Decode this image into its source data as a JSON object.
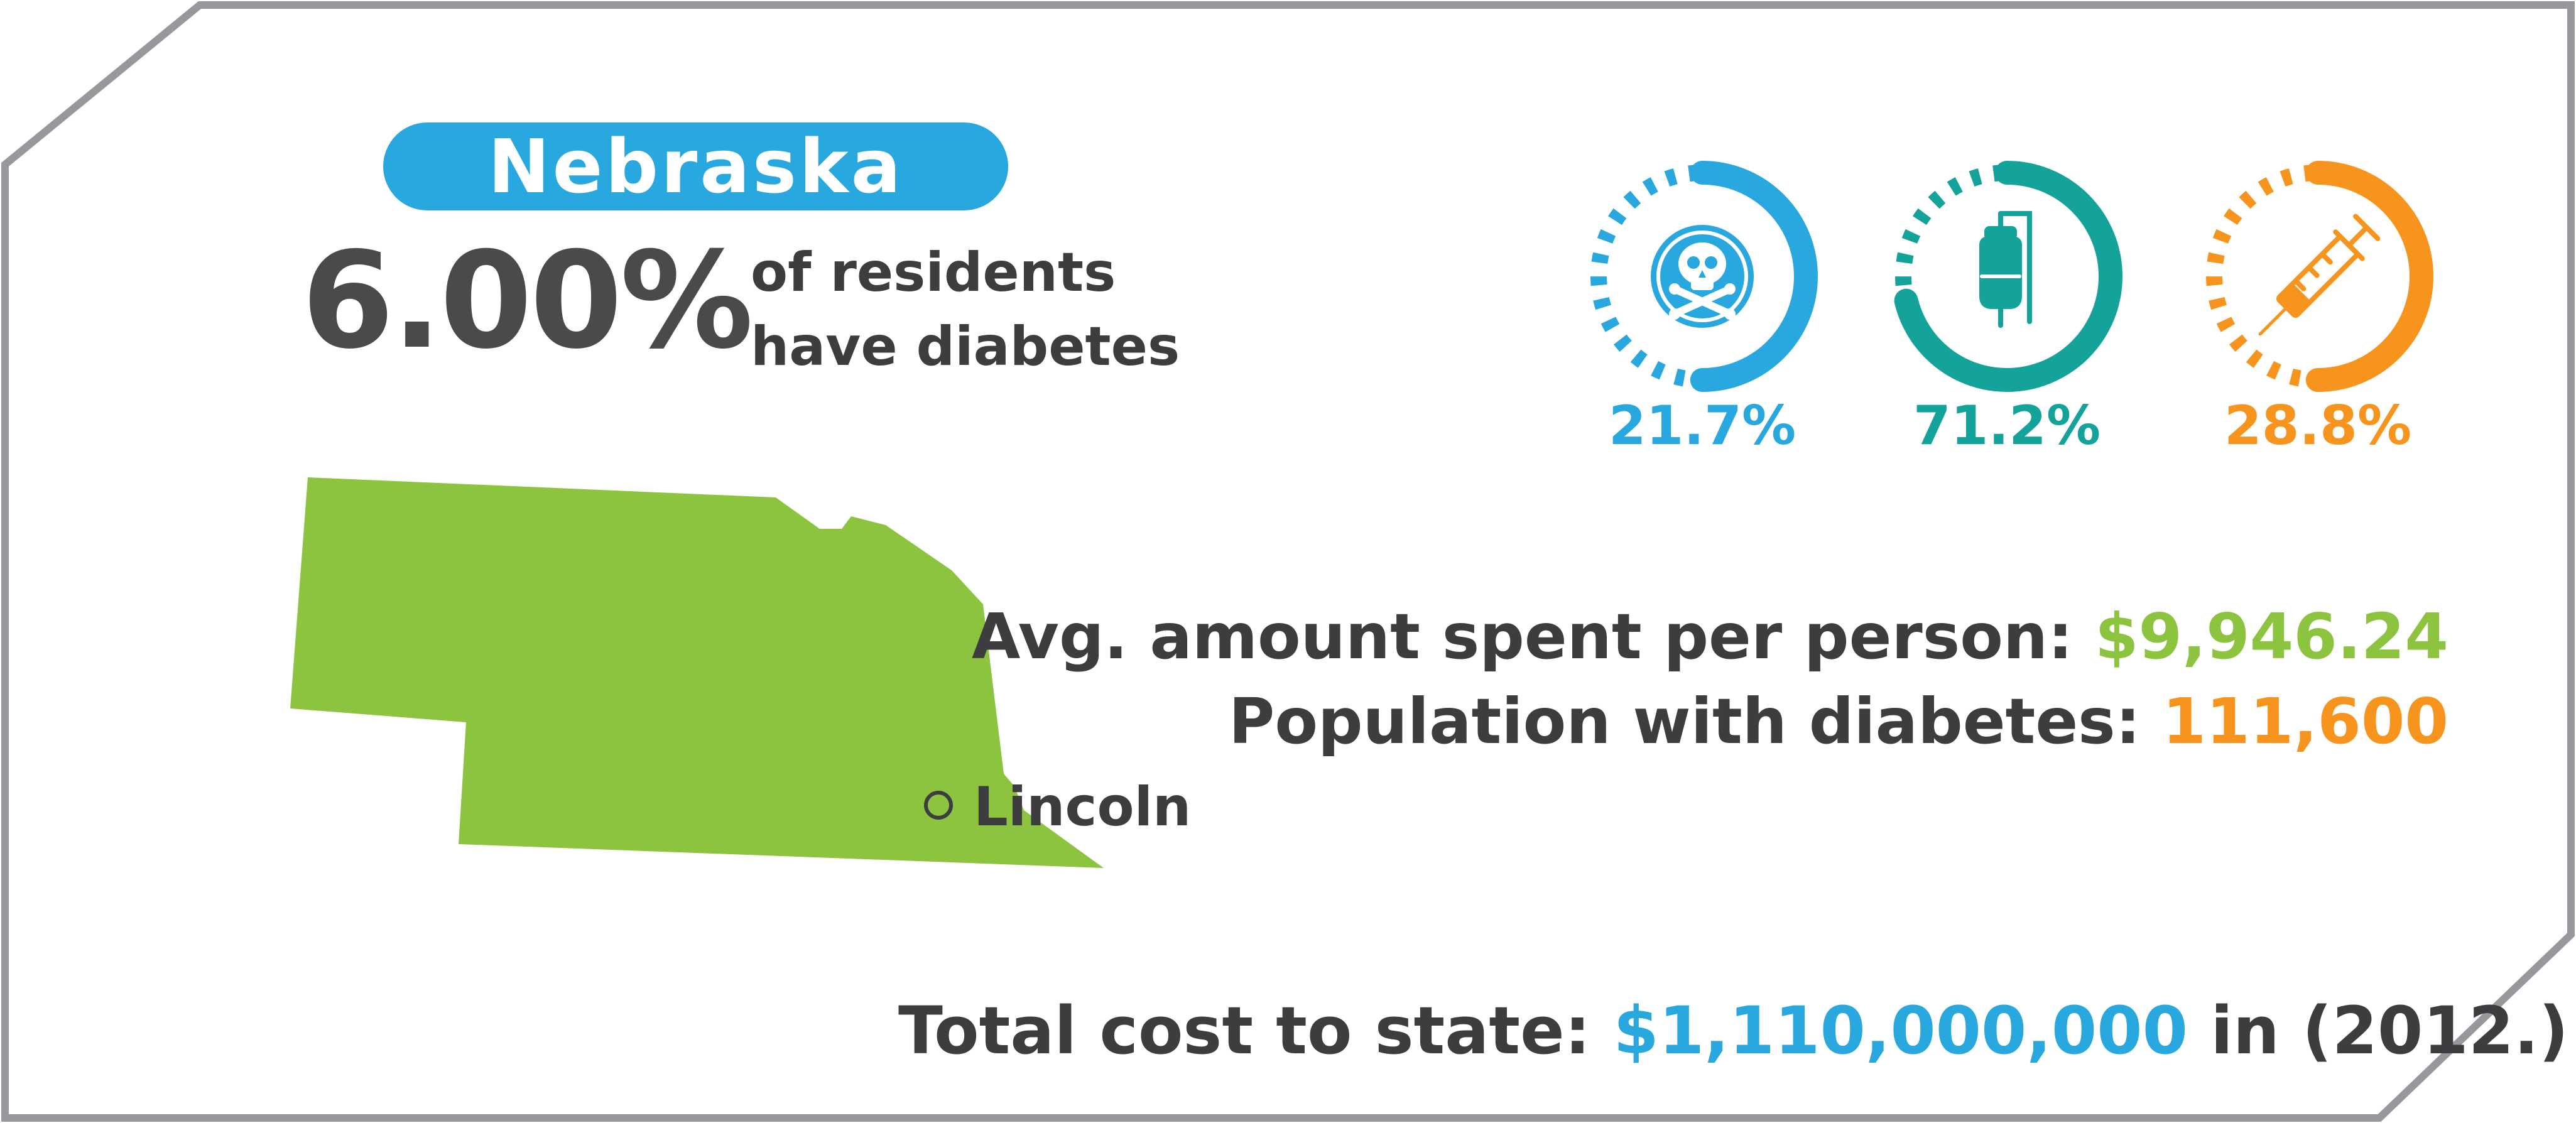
{
  "state": {
    "name": "Nebraska"
  },
  "prevalence": {
    "value": "6.00%",
    "line1": "of residents",
    "line2": "have diabetes"
  },
  "rings": [
    {
      "value": "21.7%",
      "fraction": 0.217,
      "color": "#29a8e0",
      "icon": "skull-crossbones-icon"
    },
    {
      "value": "71.2%",
      "fraction": 0.712,
      "color": "#14a39a",
      "icon": "iv-bag-icon"
    },
    {
      "value": "28.8%",
      "fraction": 0.288,
      "color": "#f7941d",
      "icon": "syringe-icon"
    }
  ],
  "map": {
    "city": "Lincoln",
    "fill_color": "#8cc43f"
  },
  "stats": {
    "avg_label": "Avg. amount spent per person:",
    "avg_value": "$9,946.24",
    "pop_label": "Population with diabetes:",
    "pop_value": "111,600"
  },
  "total": {
    "label": "Total cost to state:",
    "value": "$1,110,000,000",
    "suffix": "in (2012.)"
  },
  "colors": {
    "blue": "#29a8e0",
    "green": "#8cc43f",
    "orange": "#f7941d",
    "teal": "#14a39a",
    "dark": "#3d3d3f"
  }
}
